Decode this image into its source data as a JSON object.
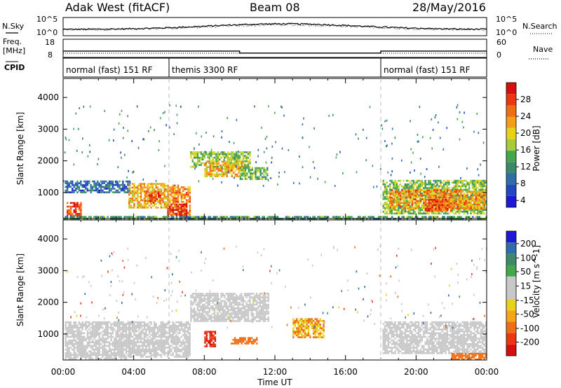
{
  "header": {
    "title": "Adak West (fitACF)",
    "beam": "Beam 08",
    "date": "28/May/2016"
  },
  "panels": {
    "nsky": {
      "label": "N.Sky",
      "ticks_left": [
        "10^5",
        "10^0"
      ],
      "right_label": "N.Search",
      "ticks_right": [
        "10^5",
        "10^0"
      ]
    },
    "freq": {
      "label_top": "Freq.",
      "label_unit": "[MHz]",
      "ticks_left": [
        "18",
        "8"
      ],
      "right_label": "Nave",
      "ticks_right": [
        "60",
        "0"
      ],
      "freq_values_mhz": [
        11.5,
        11.5,
        10.4,
        10.4,
        11.5,
        11.5
      ],
      "freq_times_h": [
        0,
        10,
        10,
        18,
        18,
        24
      ],
      "nave_level": 14
    },
    "cpid": {
      "label": "CPID",
      "modes": [
        {
          "start_h": 0,
          "end_h": 6,
          "text": "normal (fast) 151 RF"
        },
        {
          "start_h": 6,
          "end_h": 18,
          "text": "themis 3300 RF"
        },
        {
          "start_h": 18,
          "end_h": 24,
          "text": "normal (fast) 151 RF"
        }
      ]
    }
  },
  "axes": {
    "ylabel": "Slant Range [km]",
    "yticks": [
      "4000",
      "3000",
      "2000",
      "1000"
    ],
    "xticks": [
      "00:00",
      "04:00",
      "08:00",
      "12:00",
      "16:00",
      "20:00",
      "00:00"
    ],
    "xlabel": "Time UT"
  },
  "colorbars": {
    "power": {
      "label": "Power [dB]",
      "ticks": [
        "28",
        "24",
        "20",
        "16",
        "12",
        "8",
        "4"
      ],
      "colors": [
        "#1f18d6",
        "#2147c5",
        "#2f6ea8",
        "#3c8a6b",
        "#43a84b",
        "#a7cc35",
        "#e7d21a",
        "#f49d1a",
        "#f06d12",
        "#ea3712",
        "#d80f0f"
      ]
    },
    "velocity": {
      "label": "Velocity [m s^-1]",
      "ticks": [
        "200",
        "100",
        "50",
        "15",
        "-15",
        "-50",
        "-100",
        "-200"
      ],
      "colors": [
        "#1f18d6",
        "#2f6ea8",
        "#3c8a6b",
        "#43a84b",
        "#c8c8c8",
        "#c8c8c8",
        "#e7d21a",
        "#f4a51a",
        "#f06d12",
        "#ea3712",
        "#d80f0f"
      ]
    }
  },
  "chart_data": {
    "type": "heatmap",
    "x_range_h": [
      0,
      24
    ],
    "y_range_km": [
      180,
      4600
    ],
    "power_regions": [
      {
        "t0": 0.2,
        "t1": 1.0,
        "r0": 250,
        "r1": 700,
        "p": 26
      },
      {
        "t0": 0.1,
        "t1": 3.8,
        "r0": 1000,
        "r1": 1380,
        "p": 6
      },
      {
        "t0": 3.7,
        "t1": 5.9,
        "r0": 500,
        "r1": 1300,
        "p": 20
      },
      {
        "t0": 4.6,
        "t1": 5.5,
        "r0": 700,
        "r1": 1050,
        "p": 26
      },
      {
        "t0": 5.9,
        "t1": 7.2,
        "r0": 300,
        "r1": 1250,
        "p": 22
      },
      {
        "t0": 5.9,
        "t1": 7.0,
        "r0": 300,
        "r1": 650,
        "p": 28
      },
      {
        "t0": 7.2,
        "t1": 10.6,
        "r0": 1800,
        "r1": 2300,
        "p": 14
      },
      {
        "t0": 8.0,
        "t1": 10.2,
        "r0": 1500,
        "r1": 2000,
        "p": 20
      },
      {
        "t0": 10.0,
        "t1": 11.6,
        "r0": 1400,
        "r1": 1800,
        "p": 12
      },
      {
        "t0": 18.1,
        "t1": 24.0,
        "r0": 350,
        "r1": 1400,
        "p": 14
      },
      {
        "t0": 18.5,
        "t1": 22.6,
        "r0": 500,
        "r1": 1100,
        "p": 22
      },
      {
        "t0": 20.5,
        "t1": 22.0,
        "r0": 450,
        "r1": 800,
        "p": 26
      },
      {
        "t0": 22.5,
        "t1": 23.9,
        "r0": 500,
        "r1": 1050,
        "p": 22
      },
      {
        "t0": 0.0,
        "t1": 24.0,
        "r0": 180,
        "r1": 260,
        "p": 10
      }
    ],
    "velocity_regions": [
      {
        "t0": 0.1,
        "t1": 3.8,
        "r0": 200,
        "r1": 1400,
        "v": 0
      },
      {
        "t0": 3.7,
        "t1": 7.2,
        "r0": 300,
        "r1": 1400,
        "v": 0
      },
      {
        "t0": 7.2,
        "t1": 11.6,
        "r0": 1400,
        "r1": 2300,
        "v": 0
      },
      {
        "t0": 8.0,
        "t1": 8.6,
        "r0": 600,
        "r1": 1100,
        "v": -150
      },
      {
        "t0": 9.5,
        "t1": 11.0,
        "r0": 700,
        "r1": 900,
        "v": -60
      },
      {
        "t0": 13.0,
        "t1": 14.8,
        "r0": 900,
        "r1": 1500,
        "v": -40
      },
      {
        "t0": 18.1,
        "t1": 24.0,
        "r0": 400,
        "r1": 1400,
        "v": 0
      },
      {
        "t0": 22.0,
        "t1": 24.0,
        "r0": 200,
        "r1": 400,
        "v": -60
      }
    ]
  }
}
